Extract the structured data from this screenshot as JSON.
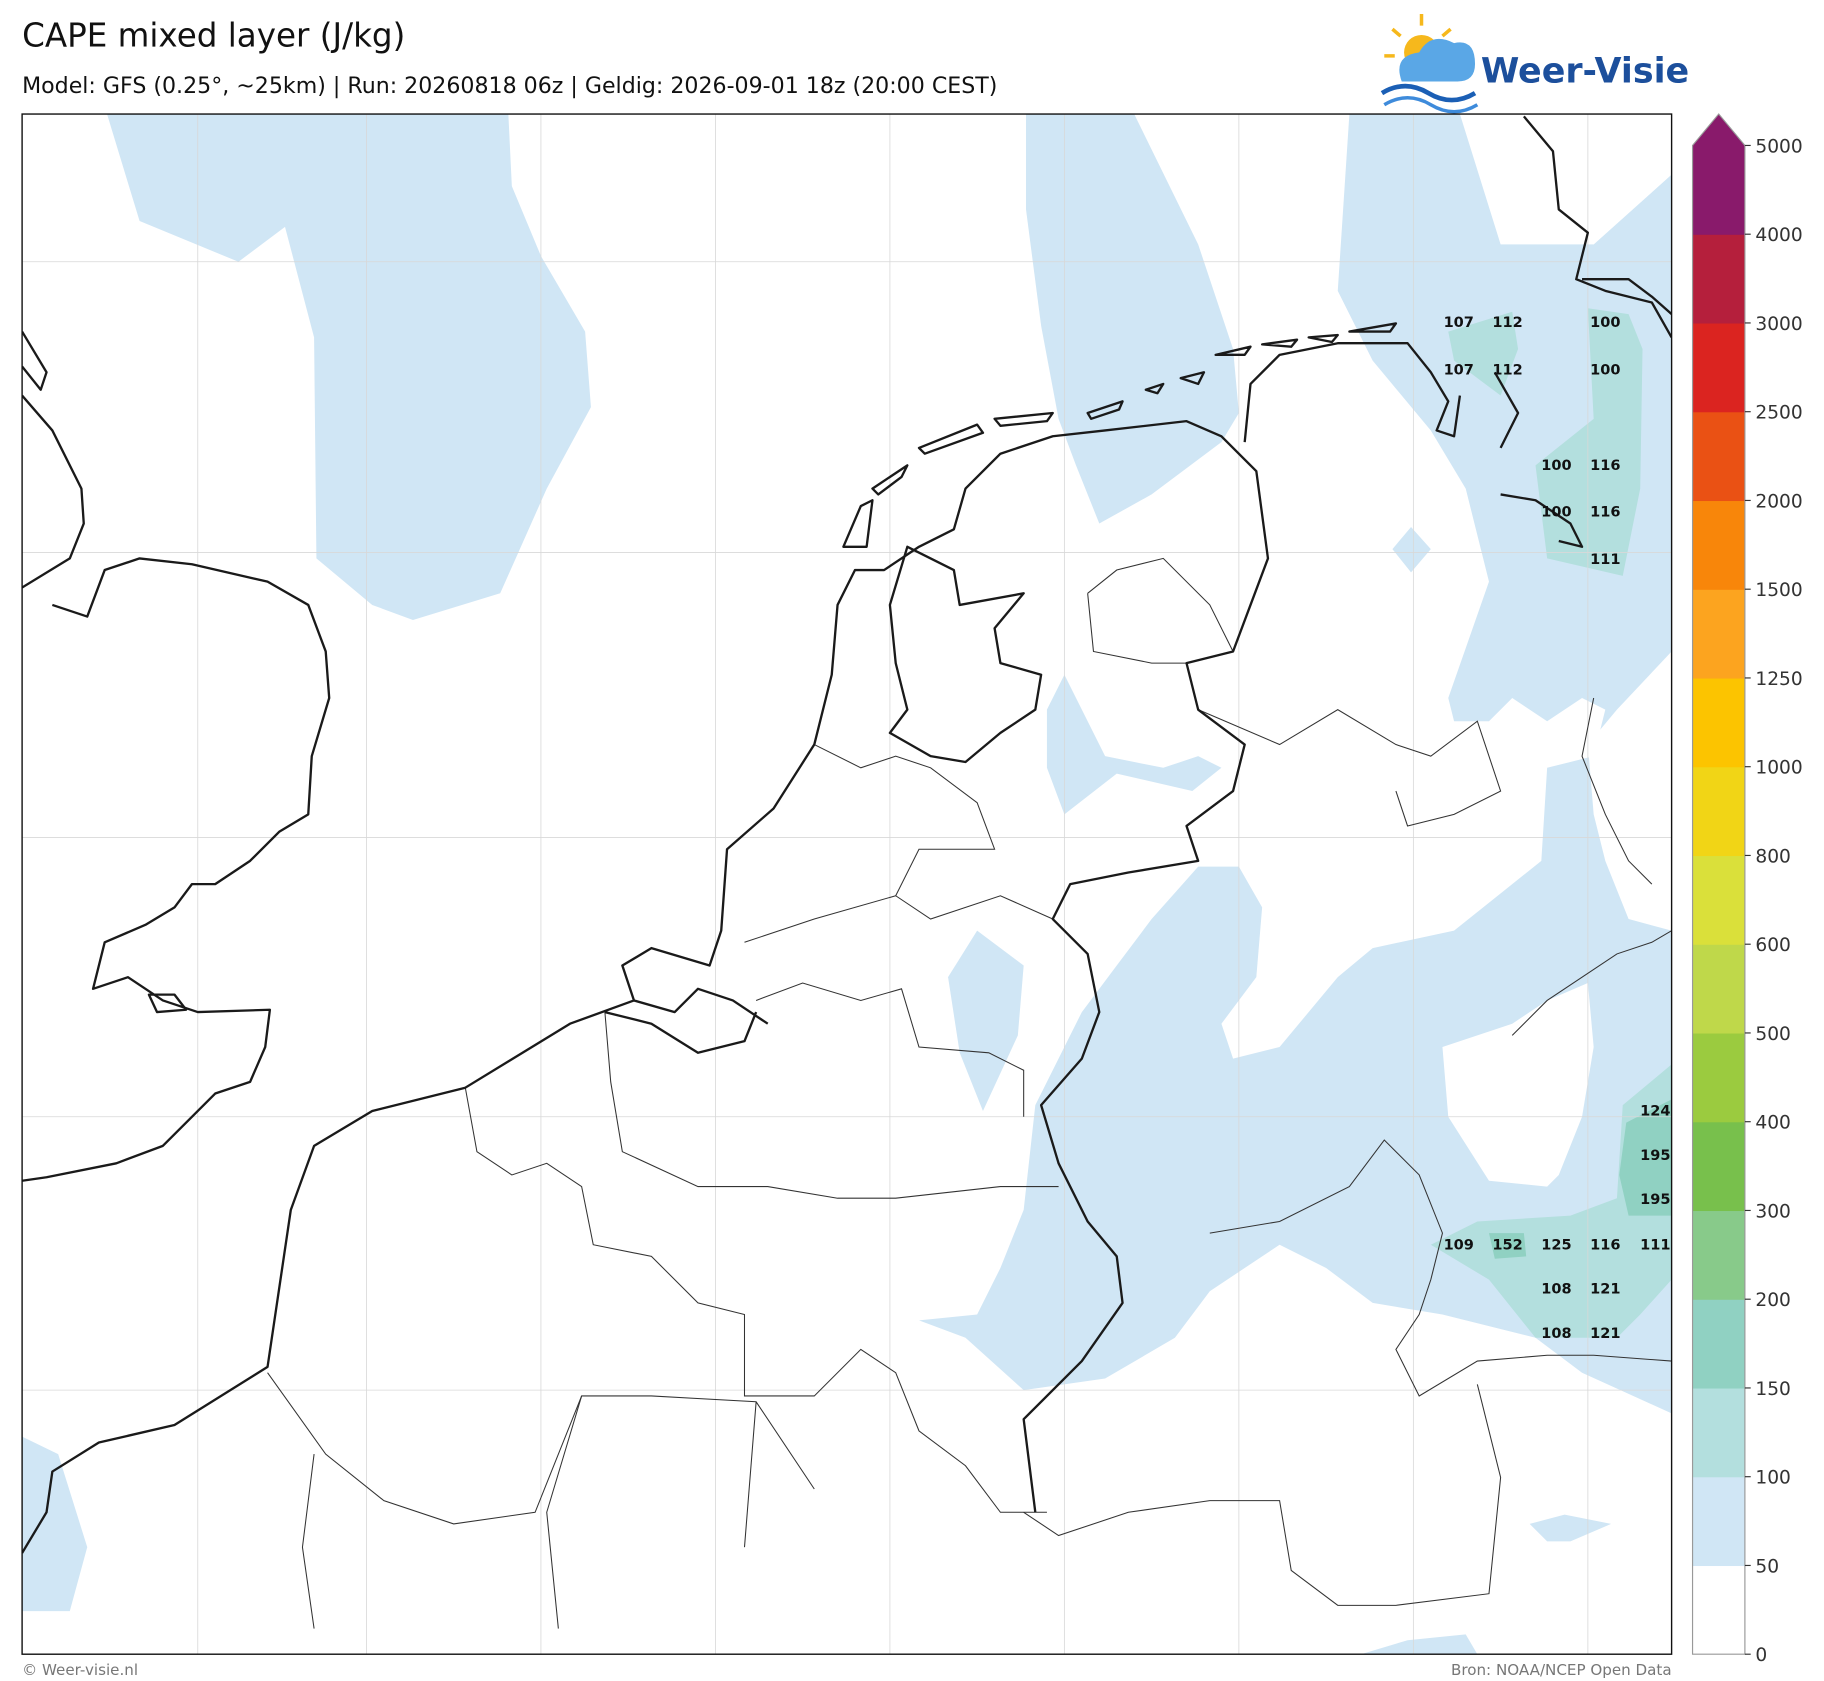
{
  "header": {
    "title": "CAPE mixed layer (J/kg)",
    "subtitle": "Model: GFS (0.25°, ~25km)  |  Run: 20260818 06z  |  Geldig: 2026-09-01 18z (20:00 CEST)",
    "logo": "Weer-Visie"
  },
  "map": {
    "labels": [
      107,
      112,
      100,
      107,
      112,
      100,
      100,
      116,
      100,
      116,
      111,
      124,
      195,
      195,
      109,
      152,
      125,
      116,
      111,
      108,
      121,
      108,
      121
    ]
  },
  "colorbar": {
    "ticks": [
      0,
      50,
      100,
      150,
      200,
      300,
      400,
      500,
      600,
      800,
      1000,
      1250,
      1500,
      2000,
      2500,
      3000,
      4000,
      5000
    ],
    "colors": [
      "#ffffff",
      "#d0e6f5",
      "#b3dfde",
      "#90d1c2",
      "#88ca8a",
      "#78c04c",
      "#9bcb3f",
      "#bfd84a",
      "#dae03a",
      "#f1d516",
      "#fcc400",
      "#fca41f",
      "#f8860a",
      "#ea5114",
      "#db2420",
      "#b51f3c",
      "#891a6b"
    ]
  },
  "footer": {
    "left": "© Weer-visie.nl",
    "right": "Bron: NOAA/NCEP Open Data"
  }
}
